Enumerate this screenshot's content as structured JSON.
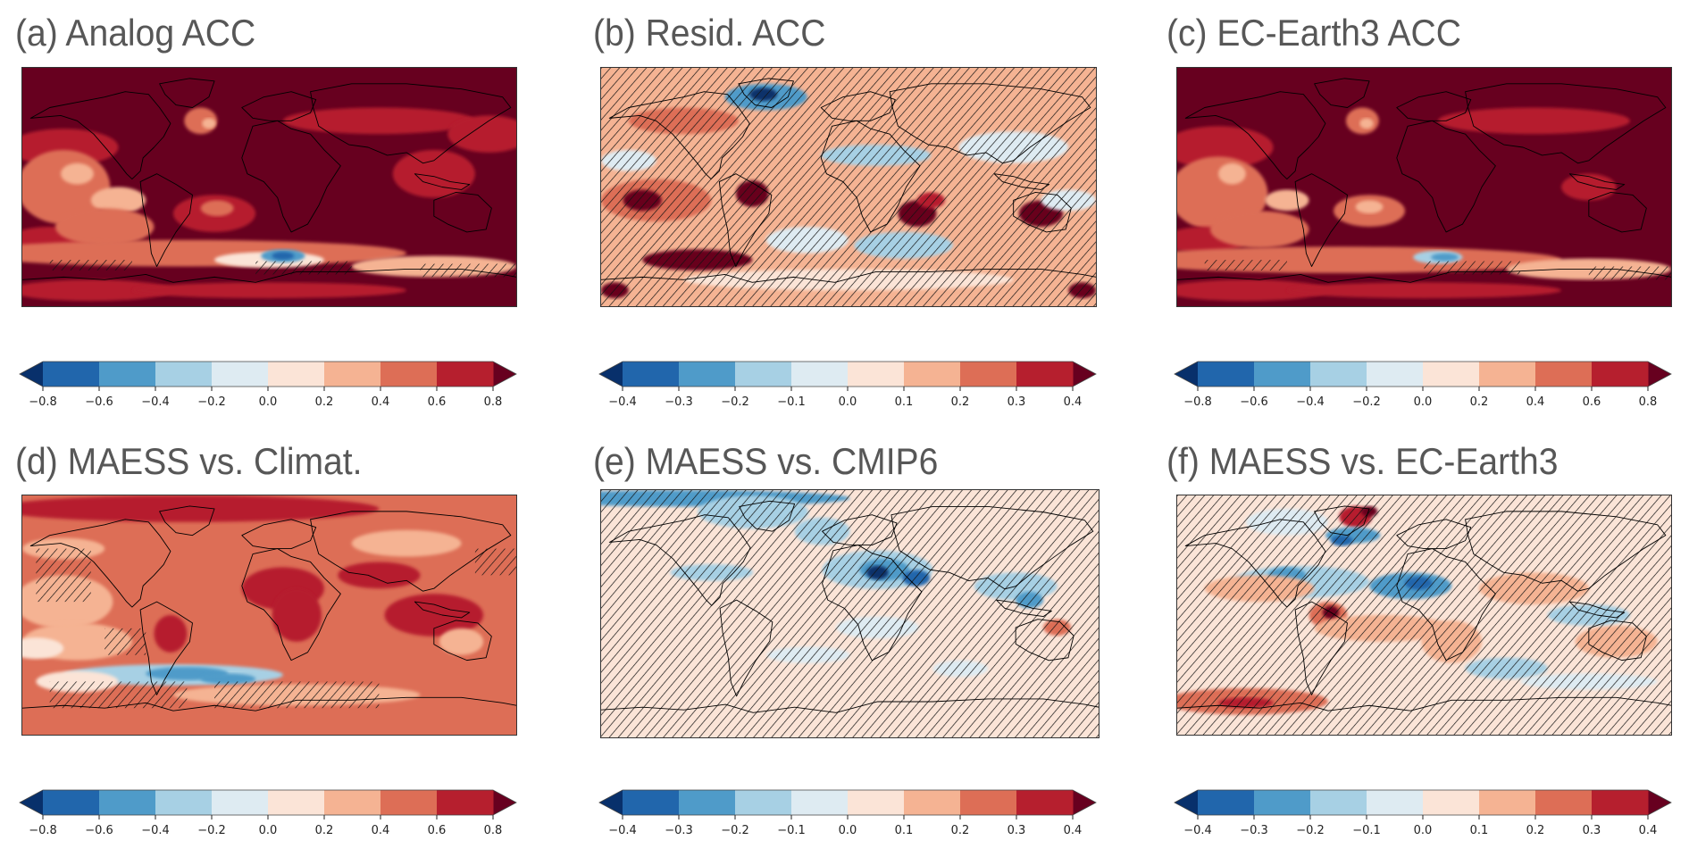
{
  "figure": {
    "panels": [
      {
        "id": "a",
        "title": "(a) Analog ACC",
        "scale": "acc"
      },
      {
        "id": "b",
        "title": "(b) Resid. ACC",
        "scale": "small"
      },
      {
        "id": "c",
        "title": "(c) EC-Earth3 ACC",
        "scale": "acc"
      },
      {
        "id": "d",
        "title": "(d) MAESS vs. Climat.",
        "scale": "acc"
      },
      {
        "id": "e",
        "title": "(e) MAESS vs. CMIP6",
        "scale": "small"
      },
      {
        "id": "f",
        "title": "(f) MAESS vs. EC-Earth3",
        "scale": "small"
      }
    ]
  },
  "chart_data": {
    "type": "heatmap",
    "description": "Six global maps (filled contours with hatching for non-significant regions) with extended colorbars",
    "colormap": "RdBu_r",
    "extend": "both",
    "hatching": "diagonal lines over non-significant areas",
    "colorbars": {
      "acc": {
        "levels": [
          -0.8,
          -0.6,
          -0.4,
          -0.2,
          0.0,
          0.2,
          0.4,
          0.6,
          0.8
        ],
        "tick_labels": [
          "−0.8",
          "−0.6",
          "−0.4",
          "−0.2",
          "0.0",
          "0.2",
          "0.4",
          "0.6",
          "0.8"
        ],
        "range": [
          -0.8,
          0.8
        ]
      },
      "small": {
        "levels": [
          -0.4,
          -0.3,
          -0.2,
          -0.1,
          0.0,
          0.1,
          0.2,
          0.3,
          0.4
        ],
        "tick_labels": [
          "−0.4",
          "−0.3",
          "−0.2",
          "−0.1",
          "0.0",
          "0.1",
          "0.2",
          "0.3",
          "0.4"
        ],
        "range": [
          -0.4,
          0.4
        ]
      }
    },
    "colors": {
      "under": "#08306b",
      "bins": [
        "#2166ac",
        "#4f9bc9",
        "#a7d0e4",
        "#deebf2",
        "#fbe4d7",
        "#f5b393",
        "#dd6e56",
        "#b61f2e"
      ],
      "over": "#67001f"
    },
    "panels": [
      {
        "id": "a",
        "title": "(a) Analog ACC",
        "colorbar": "acc",
        "summary": "mostly strongly positive (>0.6) over land and tropics; weak/negative band in Southern Ocean (hatched)"
      },
      {
        "id": "b",
        "title": "(b) Resid. ACC",
        "colorbar": "small",
        "summary": "mixed positive/negative residual skill; widespread hatching; negative over Greenland/N. Atlantic and S. Indian Ocean"
      },
      {
        "id": "c",
        "title": "(c) EC-Earth3 ACC",
        "colorbar": "acc",
        "summary": "strongly positive almost everywhere; weak/negative band in Southern Ocean (hatched)"
      },
      {
        "id": "d",
        "title": "(d) MAESS vs. Climat.",
        "colorbar": "acc",
        "summary": "positive skill score over most regions; negative in Southern Ocean; hatching over parts of E. Pacific and S. Ocean"
      },
      {
        "id": "e",
        "title": "(e) MAESS vs. CMIP6",
        "colorbar": "small",
        "summary": "mostly near zero (hatched); negative over N. Africa/Middle East and Arctic"
      },
      {
        "id": "f",
        "title": "(f) MAESS vs. EC-Earth3",
        "colorbar": "small",
        "summary": "mixed small differences; positive over S. America, S. Africa, S. Pacific; negative over N. Atlantic and Middle East"
      }
    ]
  }
}
